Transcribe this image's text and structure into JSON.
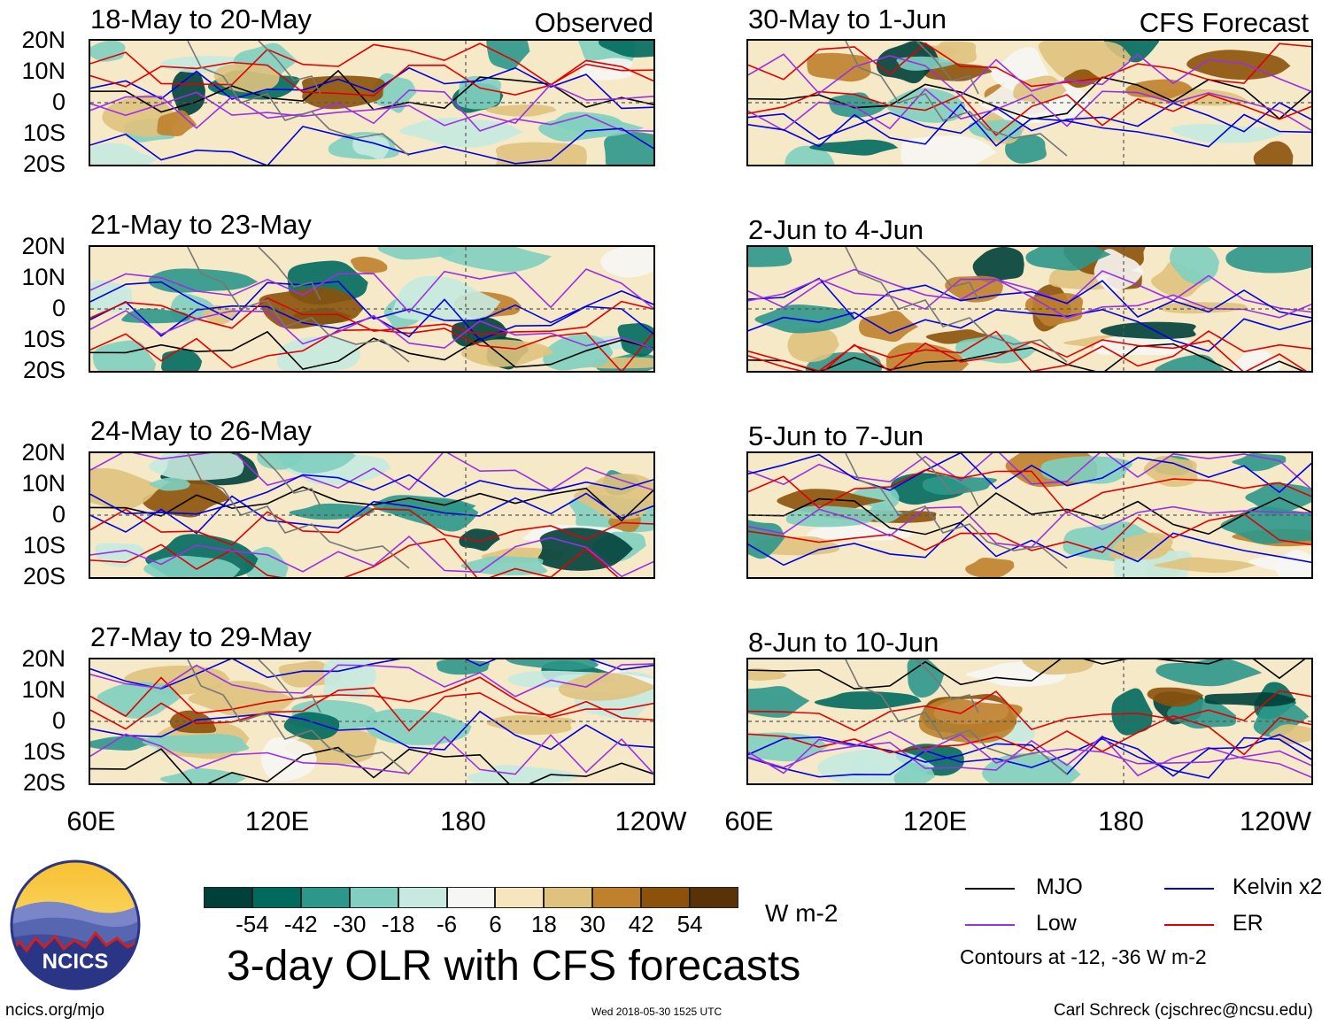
{
  "observed_label": "Observed",
  "forecast_label": "CFS Forecast",
  "observed_panels": [
    "18-May to 20-May",
    "21-May to 23-May",
    "24-May to 26-May",
    "27-May to 29-May"
  ],
  "forecast_panels": [
    "30-May to 1-Jun",
    "2-Jun to 4-Jun",
    "5-Jun to 7-Jun",
    "8-Jun to 10-Jun"
  ],
  "lat_labels": [
    "20N",
    "10N",
    "0",
    "10S",
    "20S"
  ],
  "lon_labels": [
    "60E",
    "120E",
    "180",
    "120W"
  ],
  "colorbar": {
    "colors": [
      "#00403a",
      "#006a5e",
      "#2c978a",
      "#80cfc0",
      "#c7eae0",
      "#f6f6f4",
      "#f6e5bd",
      "#dfc27d",
      "#bf812d",
      "#8c510a",
      "#5a3208"
    ],
    "ticks": [
      "-54",
      "-42",
      "-30",
      "-18",
      "-6",
      "6",
      "18",
      "30",
      "42",
      "54"
    ],
    "units": "W m-2"
  },
  "legend": {
    "items": [
      {
        "label": "MJO",
        "color": "#000000"
      },
      {
        "label": "Kelvin x2",
        "color": "#0000e0"
      },
      {
        "label": "Low",
        "color": "#9a30e6"
      },
      {
        "label": "ER",
        "color": "#e00000"
      }
    ],
    "contours_note": "Contours at -12, -36 W m-2"
  },
  "main_title": "3-day OLR with CFS forecasts",
  "logo_text": "NCICS",
  "website": "ncics.org/mjo",
  "timestamp": "Wed 2018-05-30 1525 UTC",
  "credit": "Carl Schreck (cjschrec@ncsu.edu)"
}
